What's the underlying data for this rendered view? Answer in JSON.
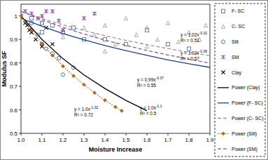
{
  "chart_data": {
    "type": "scatter",
    "x_label": "Moisture Increase",
    "y_label": "Modulus SF",
    "xlim": [
      1.0,
      1.9
    ],
    "ylim": [
      0.5,
      1.05
    ],
    "xticks": [
      {
        "value": 1.0,
        "label": "1.0"
      },
      1.1,
      1.2,
      1.3,
      1.4,
      1.5,
      1.6,
      1.7,
      1.8,
      1.9
    ],
    "yticks": [
      0.5,
      0.6,
      0.7,
      0.8,
      0.9,
      1
    ],
    "grid": false,
    "legend": "right",
    "series": [
      {
        "name": "F- SC",
        "type": "scatter",
        "marker": "square",
        "color": "#4f6fb5",
        "x": [
          1.05,
          1.1,
          1.15,
          1.2,
          1.25,
          1.3,
          1.4,
          1.5,
          1.6,
          1.7,
          1.8,
          1.1
        ],
        "values": [
          0.99,
          0.97,
          0.96,
          0.93,
          0.95,
          0.9,
          0.9,
          0.88,
          0.94,
          0.88,
          0.86,
          0.93
        ]
      },
      {
        "name": "C- SC",
        "type": "scatter",
        "marker": "triangle",
        "color": "#a0a0a0",
        "x": [
          1.1,
          1.2,
          1.3,
          1.35,
          1.4,
          1.45,
          1.5,
          1.55,
          1.6,
          1.65,
          1.7,
          1.75,
          1.8,
          1.85,
          1.88,
          1.6,
          1.4
        ],
        "values": [
          0.97,
          0.91,
          0.95,
          0.92,
          0.96,
          0.88,
          0.99,
          0.92,
          0.95,
          0.9,
          0.97,
          0.89,
          0.93,
          0.9,
          0.96,
          0.87,
          0.85
        ]
      },
      {
        "name": "Silt",
        "type": "scatter",
        "marker": "circle",
        "color": "#4f6fb5",
        "x": [
          1.05,
          1.08,
          1.1,
          1.12,
          1.15,
          1.2,
          1.25,
          1.18
        ],
        "values": [
          0.97,
          0.92,
          0.88,
          0.86,
          0.84,
          0.75,
          0.78,
          0.82
        ]
      },
      {
        "name": "SM",
        "type": "scatter",
        "marker": "asterisk",
        "color": "#9b4fb5",
        "x": [
          1.02,
          1.05,
          1.08,
          1.1,
          1.15,
          1.18,
          1.2,
          1.3,
          1.35,
          1.12
        ],
        "values": [
          1.02,
          1.01,
          0.99,
          1.0,
          1.02,
          0.98,
          0.94,
          0.99,
          1.01,
          1.02
        ]
      },
      {
        "name": "Clay",
        "type": "scatter",
        "marker": "x",
        "color": "#000000",
        "x": [
          1.0,
          1.02,
          1.03,
          1.04,
          1.05,
          1.07,
          1.1,
          1.12,
          1.15
        ],
        "values": [
          1.0,
          0.97,
          0.96,
          0.94,
          0.93,
          0.9,
          0.87,
          0.95,
          0.88
        ]
      },
      {
        "name": "Power (Clay)",
        "type": "line",
        "line_style": "solid",
        "color": "#000000",
        "x": [
          1.0,
          1.1,
          1.2,
          1.3,
          1.4,
          1.5,
          1.6
        ],
        "values": [
          1.0,
          0.9,
          0.818,
          0.749,
          0.691,
          0.64,
          0.596
        ]
      },
      {
        "name": "Power (F- SC)",
        "type": "line",
        "line_style": "solid",
        "color": "#1f3f8f",
        "x": [
          1.0,
          1.1,
          1.2,
          1.3,
          1.4,
          1.5,
          1.6,
          1.7,
          1.8,
          1.9
        ],
        "values": [
          0.99,
          0.956,
          0.925,
          0.899,
          0.874,
          0.852,
          0.832,
          0.813,
          0.796,
          0.781
        ]
      },
      {
        "name": "Power (C- SC)",
        "type": "line",
        "line_style": "dashed",
        "color": "#999999",
        "x": [
          1.0,
          1.1,
          1.2,
          1.3,
          1.4,
          1.5,
          1.6,
          1.7,
          1.8,
          1.9
        ],
        "values": [
          1.02,
          0.989,
          0.962,
          0.938,
          0.916,
          0.896,
          0.878,
          0.861,
          0.845,
          0.831
        ]
      },
      {
        "name": "Power (Silt)",
        "type": "line",
        "line_style": "dotted",
        "marker": "diamond",
        "color": "#b5651d",
        "x": [
          1.0,
          1.05,
          1.1,
          1.15,
          1.2,
          1.25,
          1.3,
          1.35,
          1.4,
          1.45,
          1.48
        ],
        "values": [
          1.0,
          0.938,
          0.882,
          0.832,
          0.786,
          0.745,
          0.707,
          0.673,
          0.641,
          0.612,
          0.596
        ]
      },
      {
        "name": "Power (SM)",
        "type": "line",
        "line_style": "dashed",
        "color": "#8e5aa8",
        "x": [
          1.0,
          1.1,
          1.2,
          1.3,
          1.4,
          1.5,
          1.6,
          1.7,
          1.8,
          1.9
        ],
        "values": [
          1.02,
          0.984,
          0.952,
          0.923,
          0.897,
          0.875,
          0.853,
          0.834,
          0.816,
          0.799
        ]
      }
    ],
    "annotations": [
      {
        "equation": "y = 1.02x",
        "exponent": "-0.32",
        "r2": "R² = 0.51"
      },
      {
        "equation": "y = 1.02x",
        "exponent": "-0.38",
        "r2": "R² = 0.57"
      },
      {
        "equation": "y = 0.99x",
        "exponent": "-0.37",
        "r2": "R² = 0.55"
      },
      {
        "equation": "y = 1.0x",
        "exponent": "-1.1",
        "r2": "R² = 0.5"
      },
      {
        "equation": "y = 1.0x",
        "exponent": "-1.32",
        "r2": "R² = 0.72"
      }
    ]
  }
}
